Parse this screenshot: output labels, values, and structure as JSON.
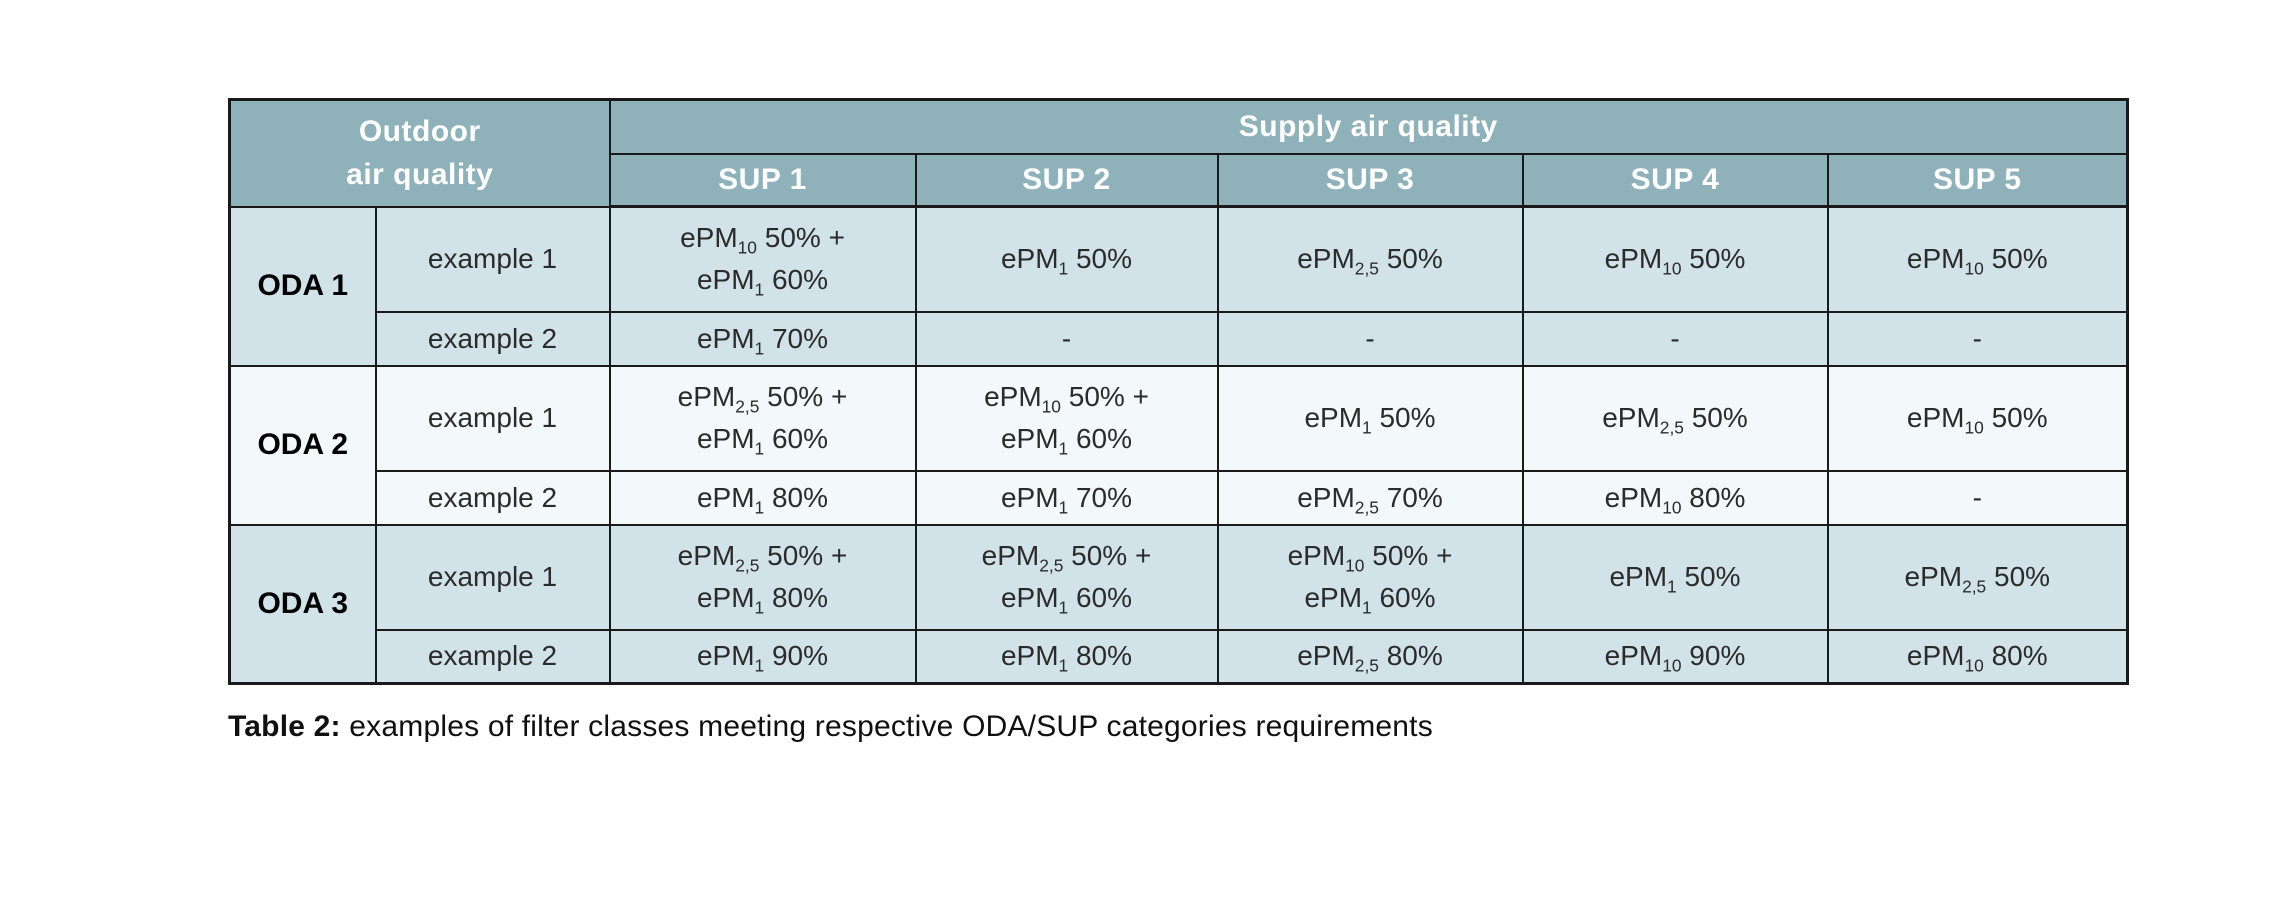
{
  "colors": {
    "header_bg": "#8fb1b9",
    "header_text": "#ffffff",
    "row_light": "#d1e3e9",
    "row_lighter": "#f3f8fa",
    "border": "#1a1a1a",
    "text": "#2b2b2b",
    "page_bg": "#ffffff"
  },
  "table": {
    "header": {
      "outdoor_label": "Outdoor\nair quality",
      "supply_label": "Supply air quality",
      "sup_columns": [
        "SUP 1",
        "SUP 2",
        "SUP 3",
        "SUP 4",
        "SUP 5"
      ]
    },
    "groups": [
      {
        "oda_label": "ODA 1",
        "rows": [
          {
            "example": "example 1",
            "cells": [
              "ePM10 50% +\nePM1 60%",
              "ePM1 50%",
              "ePM2,5 50%",
              "ePM10 50%",
              "ePM10 50%"
            ]
          },
          {
            "example": "example 2",
            "cells": [
              "ePM1 70%",
              "-",
              "-",
              "-",
              "-"
            ]
          }
        ]
      },
      {
        "oda_label": "ODA 2",
        "rows": [
          {
            "example": "example 1",
            "cells": [
              "ePM2,5 50% +\nePM1 60%",
              "ePM10 50% +\nePM1 60%",
              "ePM1 50%",
              "ePM2,5 50%",
              "ePM10 50%"
            ]
          },
          {
            "example": "example 2",
            "cells": [
              "ePM1 80%",
              "ePM1 70%",
              "ePM2,5 70%",
              "ePM10 80%",
              "-"
            ]
          }
        ]
      },
      {
        "oda_label": "ODA 3",
        "rows": [
          {
            "example": "example 1",
            "cells": [
              "ePM2,5 50% +\nePM1 80%",
              "ePM2,5 50% +\nePM1 60%",
              "ePM10 50% +\nePM1 60%",
              "ePM1 50%",
              "ePM2,5 50%"
            ]
          },
          {
            "example": "example 2",
            "cells": [
              "ePM1 90%",
              "ePM1 80%",
              "ePM2,5 80%",
              "ePM10 90%",
              "ePM10 80%"
            ]
          }
        ]
      }
    ]
  },
  "caption": {
    "label": "Table 2:",
    "text": " examples of filter classes meeting respective ODA/SUP categories requirements"
  }
}
